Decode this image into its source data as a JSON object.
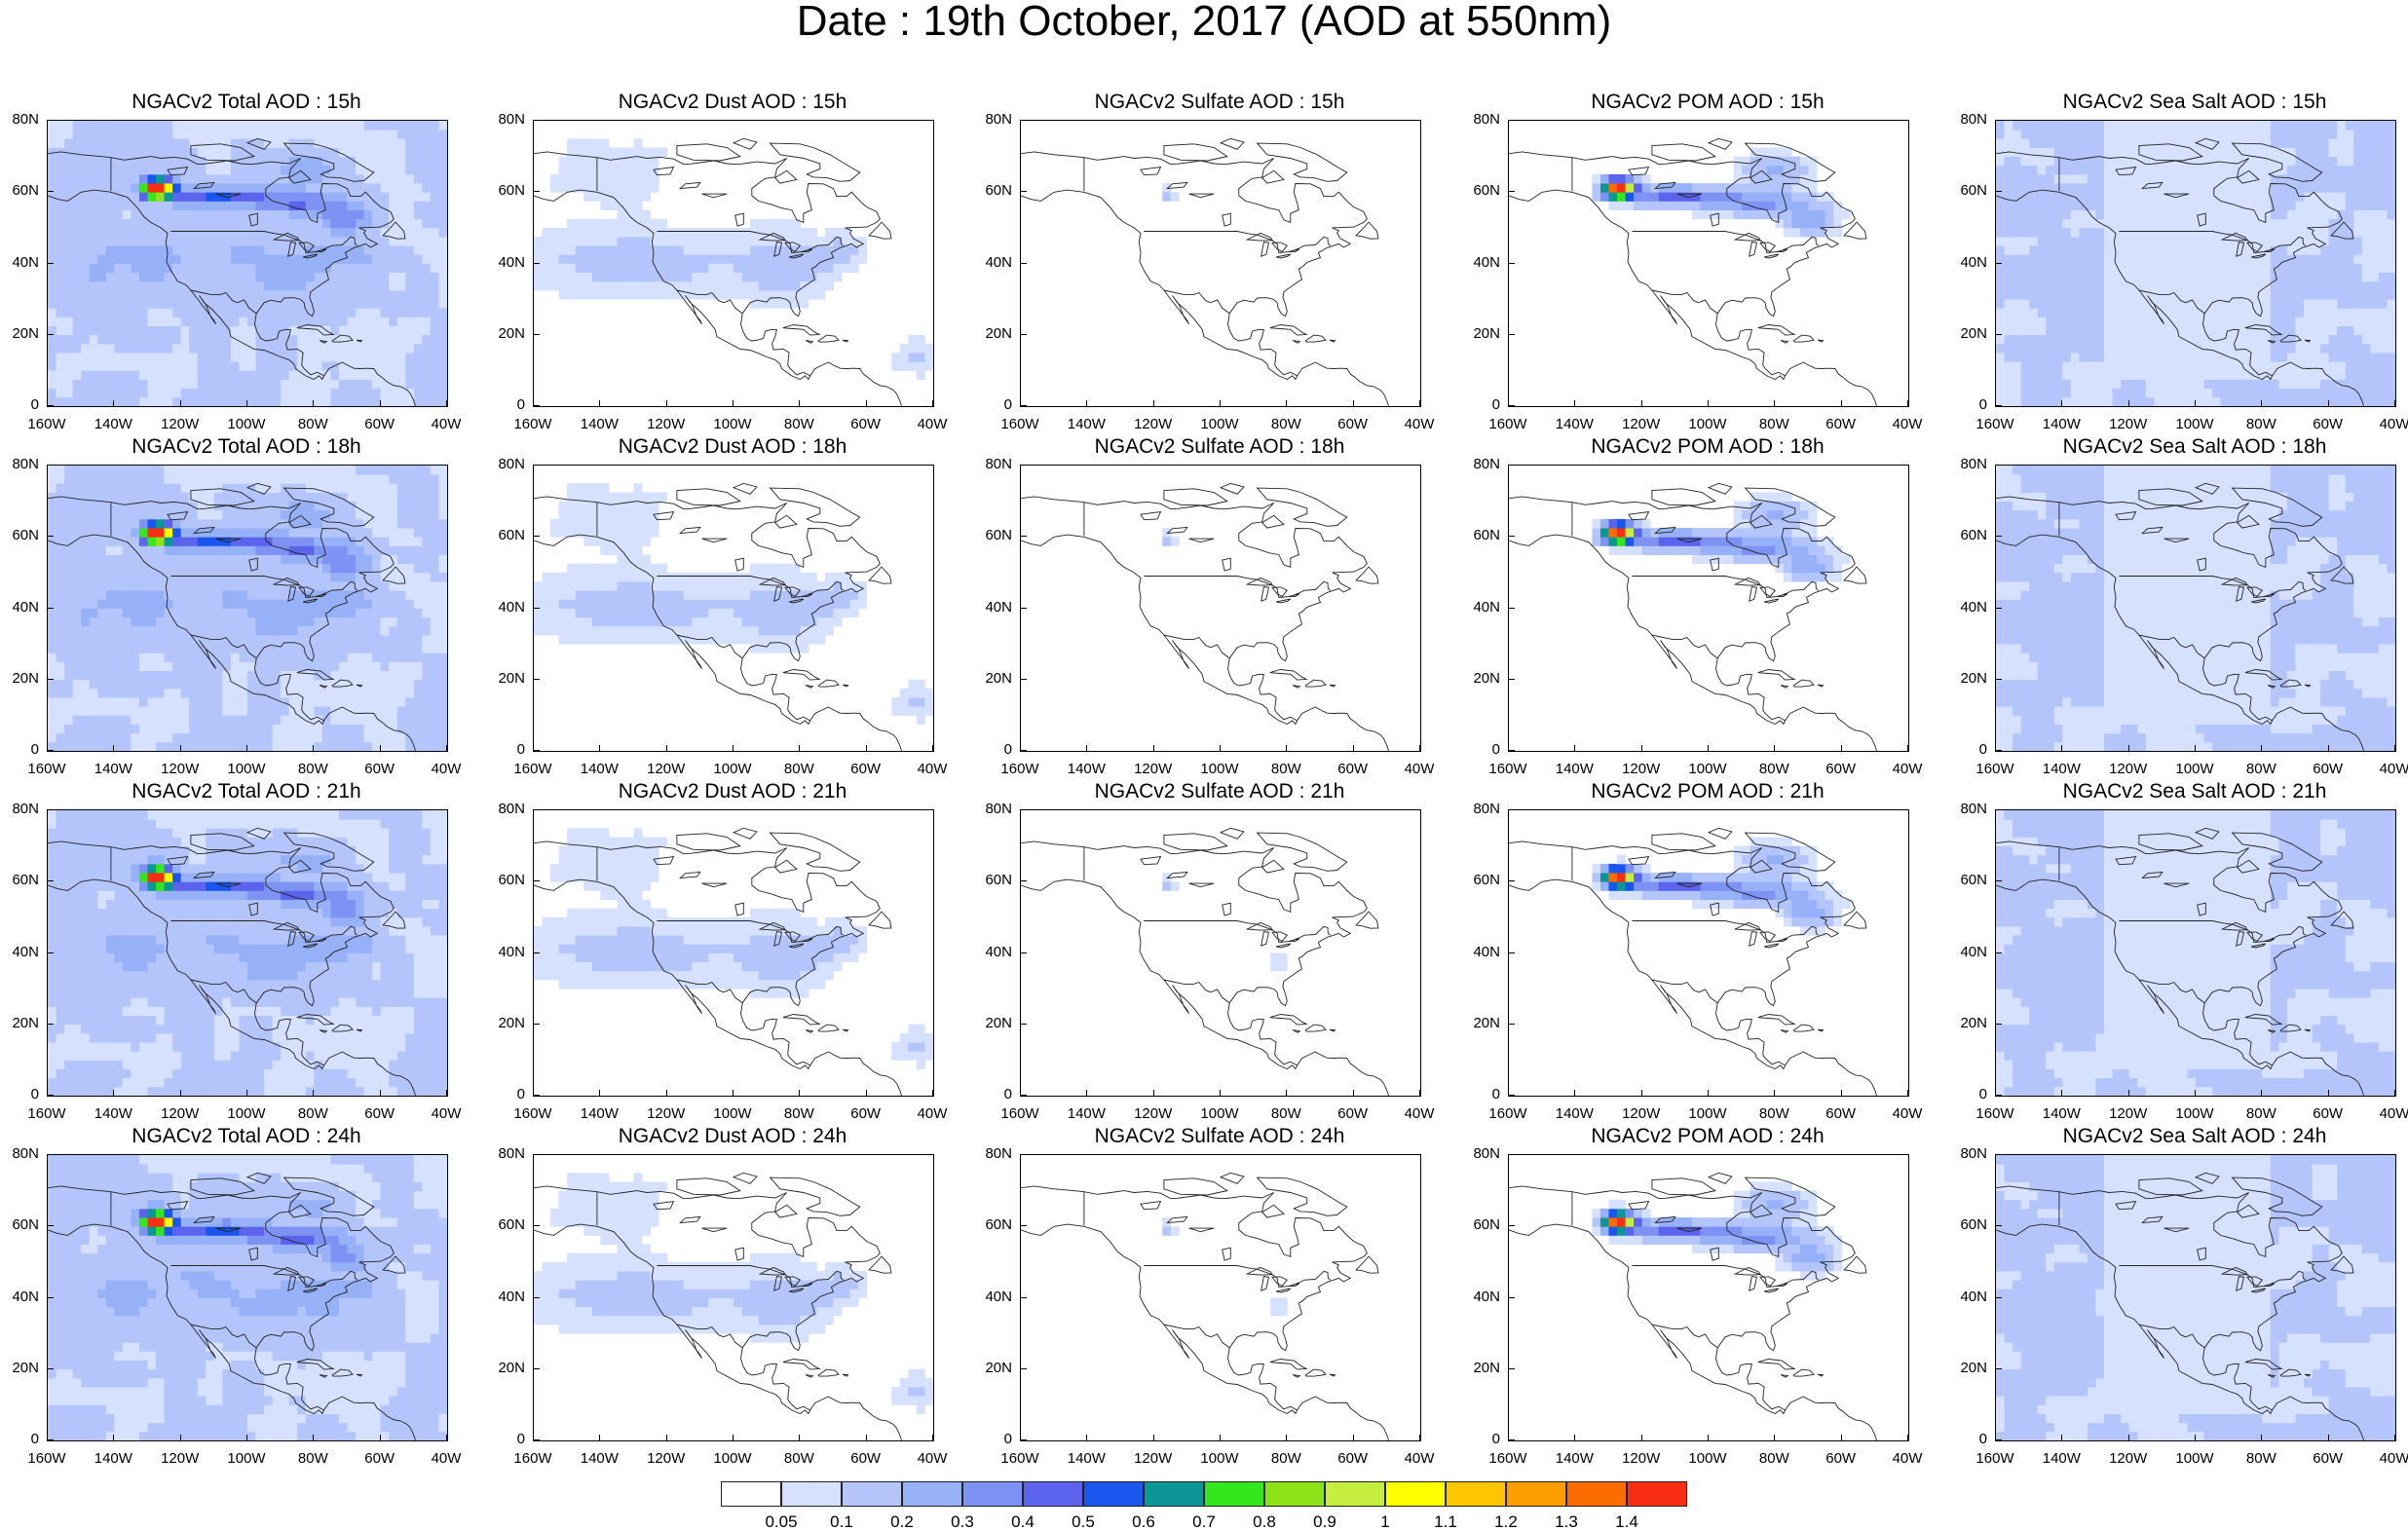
{
  "title": "Date : 19th October, 2017 (AOD at 550nm)",
  "panel_titles": [
    [
      "NGACv2 Total AOD : 15h",
      "NGACv2 Dust AOD : 15h",
      "NGACv2 Sulfate AOD : 15h",
      "NGACv2 POM AOD : 15h",
      "NGACv2 Sea Salt AOD : 15h"
    ],
    [
      "NGACv2 Total AOD : 18h",
      "NGACv2 Dust AOD : 18h",
      "NGACv2 Sulfate AOD : 18h",
      "NGACv2 POM AOD : 18h",
      "NGACv2 Sea Salt AOD : 18h"
    ],
    [
      "NGACv2 Total AOD : 21h",
      "NGACv2 Dust AOD : 21h",
      "NGACv2 Sulfate AOD : 21h",
      "NGACv2 POM AOD : 21h",
      "NGACv2 Sea Salt AOD : 21h"
    ],
    [
      "NGACv2 Total AOD : 24h",
      "NGACv2 Dust AOD : 24h",
      "NGACv2 Sulfate AOD : 24h",
      "NGACv2 POM AOD : 24h",
      "NGACv2 Sea Salt  AOD : 24h"
    ]
  ],
  "x_ticks": [
    "160W",
    "140W",
    "120W",
    "100W",
    "80W",
    "60W",
    "40W"
  ],
  "y_ticks": [
    "80N",
    "60N",
    "40N",
    "20N",
    "0"
  ],
  "map_extent": {
    "lon": [
      -160,
      -40
    ],
    "lat": [
      0,
      80
    ]
  },
  "colorbar": {
    "labels": [
      "0.05",
      "0.1",
      "0.2",
      "0.3",
      "0.4",
      "0.5",
      "0.6",
      "0.7",
      "0.8",
      "0.9",
      "1",
      "1.1",
      "1.2",
      "1.3",
      "1.4"
    ],
    "colors": [
      "#ffffff",
      "#d6e0ff",
      "#b4c5fb",
      "#96b1f8",
      "#7e92f4",
      "#5c64ee",
      "#1a55ee",
      "#0c9696",
      "#33e61e",
      "#8ee21a",
      "#c6ee40",
      "#ffff00",
      "#fdc600",
      "#fd9f00",
      "#fc6d00",
      "#f92e13"
    ]
  },
  "colors": {
    "land_outline": "#222222",
    "low_aod": "#d6e0ff"
  }
}
